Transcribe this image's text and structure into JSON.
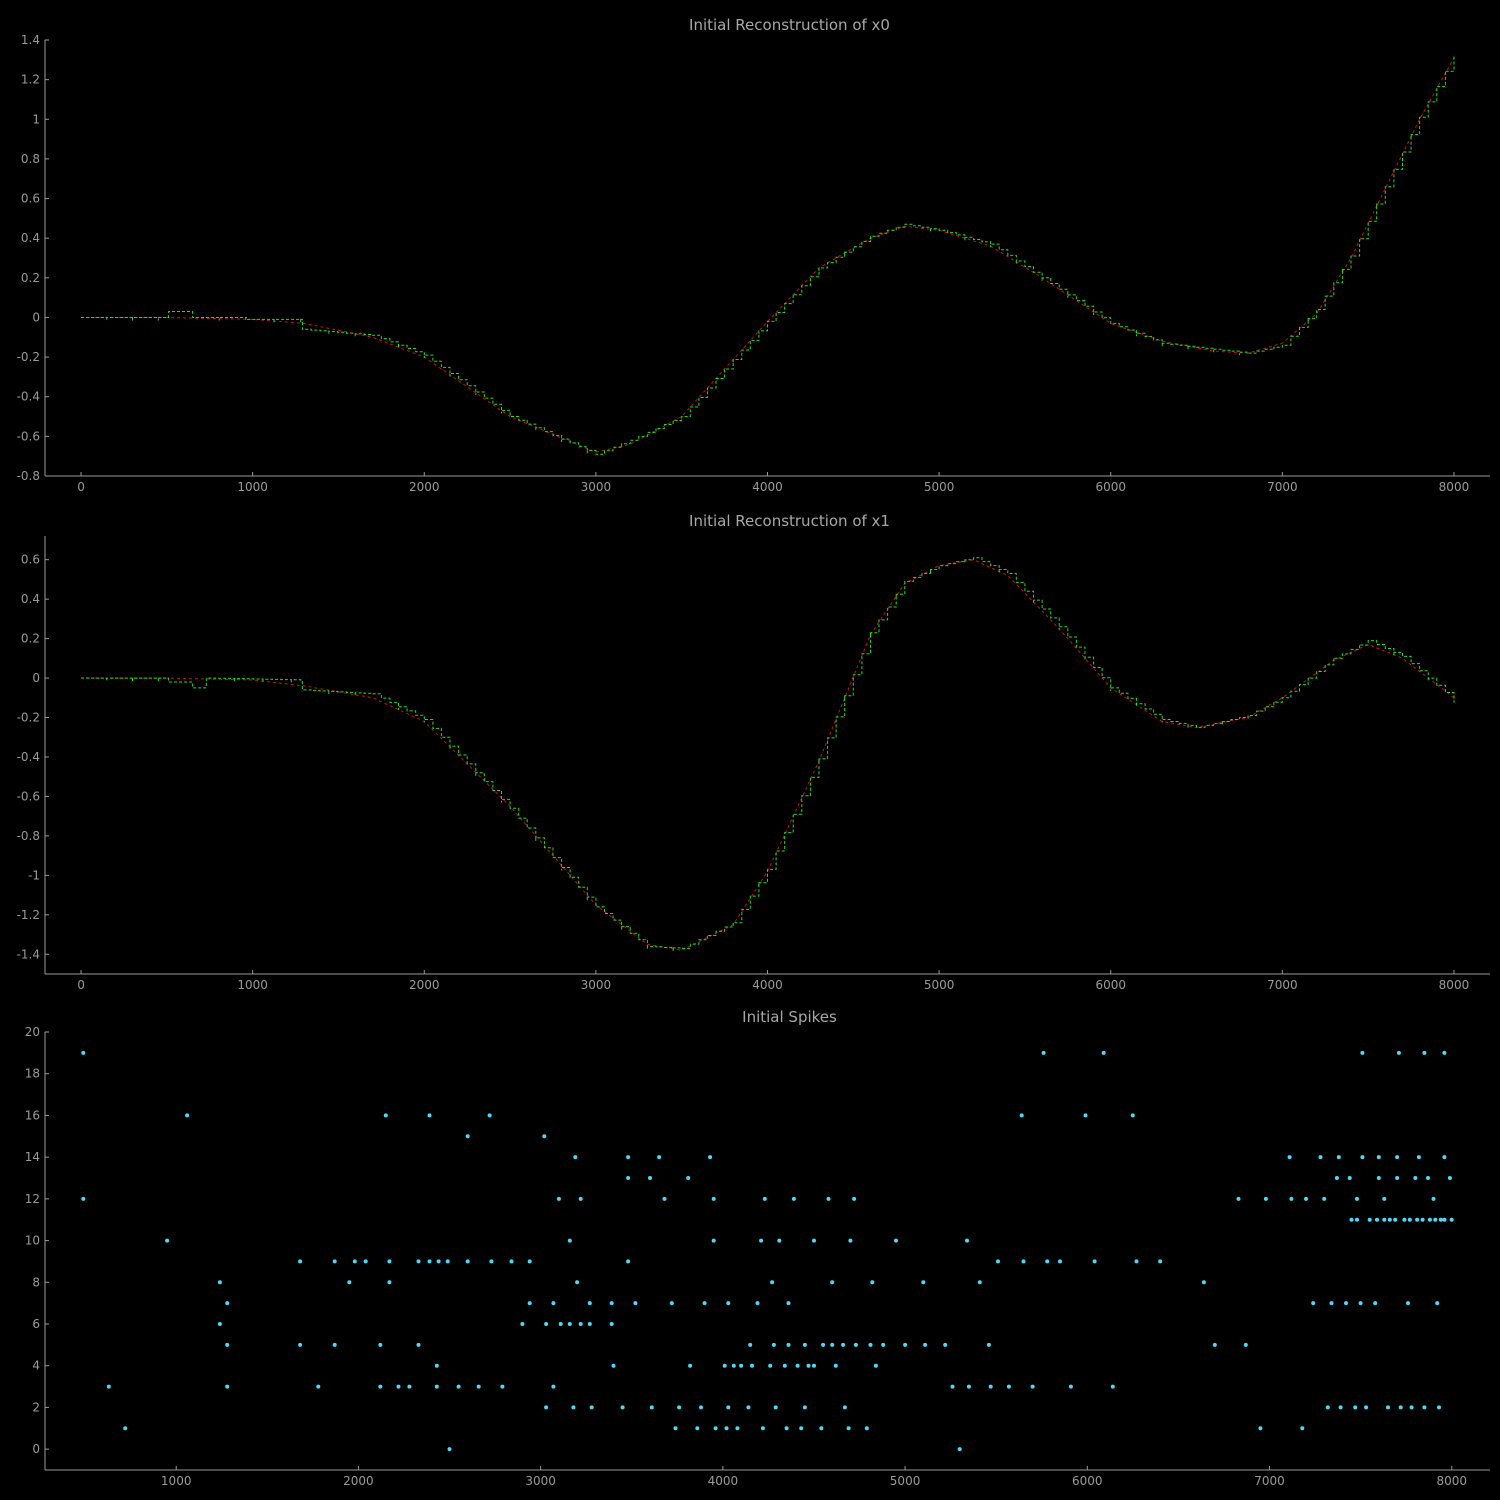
{
  "chart_data": [
    {
      "type": "line",
      "title": "Initial Reconstruction of x0",
      "xlabel": "",
      "ylabel": "",
      "xlim": [
        -210,
        8210
      ],
      "ylim": [
        -0.8,
        1.4
      ],
      "xticks": [
        0,
        1000,
        2000,
        3000,
        4000,
        5000,
        6000,
        7000,
        8000
      ],
      "yticks": [
        -0.8,
        -0.6,
        -0.4,
        -0.2,
        0,
        0.2,
        0.4,
        0.6,
        0.8,
        1,
        1.2,
        1.4
      ],
      "grid": false,
      "colors": {
        "target": "#cc1111",
        "reconstruction": "#22dd22"
      },
      "series": [
        {
          "style": "dashed-red",
          "x": [
            0,
            500,
            1000,
            1300,
            1700,
            2000,
            2500,
            3000,
            3200,
            3500,
            4000,
            4300,
            4600,
            4800,
            5000,
            5300,
            5600,
            6000,
            6300,
            6600,
            6800,
            7000,
            7200,
            7400,
            7600,
            7800,
            8000
          ],
          "y": [
            0,
            0,
            -0.01,
            -0.03,
            -0.1,
            -0.2,
            -0.5,
            -0.68,
            -0.64,
            -0.5,
            -0.02,
            0.25,
            0.4,
            0.46,
            0.44,
            0.36,
            0.2,
            -0.03,
            -0.12,
            -0.17,
            -0.18,
            -0.13,
            0.02,
            0.3,
            0.65,
            1.0,
            1.31
          ]
        },
        {
          "style": "stepped-green",
          "x": [
            0,
            500,
            510,
            640,
            650,
            960,
            970,
            1280,
            1290,
            1700,
            2000,
            2500,
            3000,
            3200,
            3500,
            4000,
            4300,
            4600,
            4800,
            5000,
            5300,
            5600,
            6000,
            6300,
            6600,
            6800,
            7000,
            7200,
            7400,
            7600,
            7800,
            8000
          ],
          "y": [
            0,
            0,
            0.03,
            0.03,
            0.0,
            0.0,
            -0.01,
            -0.01,
            -0.06,
            -0.09,
            -0.19,
            -0.5,
            -0.69,
            -0.62,
            -0.5,
            -0.02,
            0.25,
            0.41,
            0.47,
            0.44,
            0.37,
            0.2,
            -0.03,
            -0.13,
            -0.16,
            -0.18,
            -0.14,
            0.04,
            0.31,
            0.66,
            1.01,
            1.32
          ]
        }
      ]
    },
    {
      "type": "line",
      "title": "Initial Reconstruction of x1",
      "xlabel": "",
      "ylabel": "",
      "xlim": [
        -210,
        8210
      ],
      "ylim": [
        -1.5,
        0.72
      ],
      "xticks": [
        0,
        1000,
        2000,
        3000,
        4000,
        5000,
        6000,
        7000,
        8000
      ],
      "yticks": [
        -1.4,
        -1.2,
        -1,
        -0.8,
        -0.6,
        -0.4,
        -0.2,
        0,
        0.2,
        0.4,
        0.6
      ],
      "grid": false,
      "colors": {
        "target": "#cc1111",
        "reconstruction": "#22dd22"
      },
      "series": [
        {
          "style": "dashed-red",
          "x": [
            0,
            500,
            1000,
            1300,
            1700,
            2000,
            2500,
            3000,
            3300,
            3500,
            3800,
            4000,
            4300,
            4600,
            4800,
            5000,
            5200,
            5400,
            5700,
            6000,
            6300,
            6500,
            6800,
            7000,
            7300,
            7500,
            7700,
            8000
          ],
          "y": [
            0,
            0,
            -0.01,
            -0.04,
            -0.1,
            -0.22,
            -0.65,
            -1.15,
            -1.35,
            -1.38,
            -1.25,
            -0.98,
            -0.42,
            0.22,
            0.48,
            0.57,
            0.6,
            0.52,
            0.25,
            -0.05,
            -0.22,
            -0.25,
            -0.2,
            -0.1,
            0.09,
            0.17,
            0.1,
            -0.1
          ]
        },
        {
          "style": "stepped-green",
          "x": [
            0,
            500,
            510,
            640,
            650,
            720,
            730,
            1280,
            1290,
            1700,
            2000,
            2500,
            3000,
            3300,
            3500,
            3800,
            4000,
            4300,
            4600,
            4800,
            5000,
            5200,
            5400,
            5700,
            6000,
            6300,
            6500,
            6800,
            7000,
            7300,
            7500,
            7700,
            8000
          ],
          "y": [
            0,
            0,
            -0.02,
            -0.02,
            -0.05,
            -0.05,
            0.0,
            -0.01,
            -0.06,
            -0.08,
            -0.21,
            -0.66,
            -1.16,
            -1.36,
            -1.37,
            -1.24,
            -0.97,
            -0.41,
            0.23,
            0.49,
            0.57,
            0.61,
            0.53,
            0.26,
            -0.05,
            -0.21,
            -0.25,
            -0.19,
            -0.1,
            0.1,
            0.19,
            0.11,
            -0.11
          ]
        }
      ]
    },
    {
      "type": "scatter",
      "title": "Initial Spikes",
      "xlabel": "",
      "ylabel": "",
      "xlim": [
        280,
        8210
      ],
      "ylim": [
        -1,
        20
      ],
      "xticks": [
        1000,
        2000,
        3000,
        4000,
        5000,
        6000,
        7000,
        8000
      ],
      "yticks": [
        0,
        2,
        4,
        6,
        8,
        10,
        12,
        14,
        16,
        18,
        20
      ],
      "grid": false,
      "colors": {
        "points": "#4fd8f5"
      },
      "points": [
        [
          490,
          19
        ],
        [
          490,
          12
        ],
        [
          630,
          3
        ],
        [
          720,
          1
        ],
        [
          950,
          10
        ],
        [
          1060,
          16
        ],
        [
          1240,
          8
        ],
        [
          1240,
          6
        ],
        [
          1280,
          7
        ],
        [
          1280,
          5
        ],
        [
          1280,
          3
        ],
        [
          1680,
          9
        ],
        [
          1680,
          5
        ],
        [
          1780,
          3
        ],
        [
          1870,
          9
        ],
        [
          1870,
          5
        ],
        [
          1950,
          8
        ],
        [
          1980,
          9
        ],
        [
          2040,
          9
        ],
        [
          2120,
          5
        ],
        [
          2120,
          3
        ],
        [
          2150,
          16
        ],
        [
          2170,
          9
        ],
        [
          2170,
          8
        ],
        [
          2220,
          3
        ],
        [
          2280,
          3
        ],
        [
          2330,
          9
        ],
        [
          2330,
          5
        ],
        [
          2390,
          16
        ],
        [
          2390,
          9
        ],
        [
          2430,
          4
        ],
        [
          2430,
          3
        ],
        [
          2440,
          9
        ],
        [
          2490,
          9
        ],
        [
          2500,
          0
        ],
        [
          2550,
          3
        ],
        [
          2600,
          15
        ],
        [
          2600,
          9
        ],
        [
          2660,
          3
        ],
        [
          2720,
          16
        ],
        [
          2730,
          9
        ],
        [
          2790,
          3
        ],
        [
          2840,
          9
        ],
        [
          2900,
          6
        ],
        [
          2940,
          9
        ],
        [
          2940,
          7
        ],
        [
          3020,
          15
        ],
        [
          3030,
          6
        ],
        [
          3030,
          2
        ],
        [
          3070,
          7
        ],
        [
          3070,
          3
        ],
        [
          3100,
          12
        ],
        [
          3110,
          6
        ],
        [
          3160,
          10
        ],
        [
          3160,
          6
        ],
        [
          3180,
          2
        ],
        [
          3190,
          14
        ],
        [
          3200,
          8
        ],
        [
          3220,
          12
        ],
        [
          3220,
          6
        ],
        [
          3270,
          7
        ],
        [
          3270,
          6
        ],
        [
          3280,
          2
        ],
        [
          3390,
          7
        ],
        [
          3390,
          6
        ],
        [
          3400,
          4
        ],
        [
          3450,
          2
        ],
        [
          3480,
          14
        ],
        [
          3480,
          13
        ],
        [
          3480,
          9
        ],
        [
          3520,
          7
        ],
        [
          3600,
          13
        ],
        [
          3610,
          2
        ],
        [
          3650,
          14
        ],
        [
          3680,
          12
        ],
        [
          3720,
          7
        ],
        [
          3740,
          1
        ],
        [
          3760,
          2
        ],
        [
          3810,
          13
        ],
        [
          3820,
          4
        ],
        [
          3860,
          1
        ],
        [
          3880,
          2
        ],
        [
          3900,
          7
        ],
        [
          3930,
          14
        ],
        [
          3950,
          12
        ],
        [
          3950,
          10
        ],
        [
          3960,
          1
        ],
        [
          4010,
          4
        ],
        [
          4020,
          1
        ],
        [
          4030,
          7
        ],
        [
          4030,
          2
        ],
        [
          4060,
          4
        ],
        [
          4080,
          1
        ],
        [
          4100,
          4
        ],
        [
          4140,
          2
        ],
        [
          4150,
          5
        ],
        [
          4160,
          4
        ],
        [
          4190,
          7
        ],
        [
          4210,
          10
        ],
        [
          4220,
          1
        ],
        [
          4230,
          12
        ],
        [
          4260,
          4
        ],
        [
          4270,
          8
        ],
        [
          4280,
          5
        ],
        [
          4290,
          2
        ],
        [
          4310,
          10
        ],
        [
          4340,
          4
        ],
        [
          4350,
          1
        ],
        [
          4360,
          7
        ],
        [
          4360,
          5
        ],
        [
          4390,
          12
        ],
        [
          4410,
          4
        ],
        [
          4430,
          1
        ],
        [
          4450,
          5
        ],
        [
          4450,
          2
        ],
        [
          4470,
          4
        ],
        [
          4500,
          10
        ],
        [
          4500,
          4
        ],
        [
          4540,
          1
        ],
        [
          4550,
          5
        ],
        [
          4580,
          12
        ],
        [
          4600,
          8
        ],
        [
          4600,
          5
        ],
        [
          4620,
          4
        ],
        [
          4660,
          5
        ],
        [
          4670,
          2
        ],
        [
          4690,
          1
        ],
        [
          4700,
          10
        ],
        [
          4720,
          12
        ],
        [
          4730,
          5
        ],
        [
          4790,
          1
        ],
        [
          4810,
          5
        ],
        [
          4820,
          8
        ],
        [
          4840,
          4
        ],
        [
          4880,
          5
        ],
        [
          4950,
          10
        ],
        [
          5000,
          5
        ],
        [
          5100,
          8
        ],
        [
          5110,
          5
        ],
        [
          5220,
          5
        ],
        [
          5260,
          3
        ],
        [
          5300,
          0
        ],
        [
          5340,
          10
        ],
        [
          5350,
          3
        ],
        [
          5410,
          8
        ],
        [
          5460,
          5
        ],
        [
          5470,
          3
        ],
        [
          5510,
          9
        ],
        [
          5570,
          3
        ],
        [
          5640,
          16
        ],
        [
          5650,
          9
        ],
        [
          5700,
          3
        ],
        [
          5760,
          19
        ],
        [
          5780,
          9
        ],
        [
          5850,
          9
        ],
        [
          5910,
          3
        ],
        [
          5990,
          16
        ],
        [
          6040,
          9
        ],
        [
          6090,
          19
        ],
        [
          6140,
          3
        ],
        [
          6250,
          16
        ],
        [
          6270,
          9
        ],
        [
          6400,
          9
        ],
        [
          6640,
          8
        ],
        [
          6700,
          5
        ],
        [
          6830,
          12
        ],
        [
          6870,
          5
        ],
        [
          6950,
          1
        ],
        [
          6980,
          12
        ],
        [
          7110,
          14
        ],
        [
          7120,
          12
        ],
        [
          7180,
          1
        ],
        [
          7200,
          12
        ],
        [
          7240,
          7
        ],
        [
          7280,
          14
        ],
        [
          7300,
          12
        ],
        [
          7320,
          2
        ],
        [
          7340,
          7
        ],
        [
          7370,
          13
        ],
        [
          7380,
          14
        ],
        [
          7390,
          2
        ],
        [
          7420,
          7
        ],
        [
          7440,
          13
        ],
        [
          7450,
          11
        ],
        [
          7470,
          2
        ],
        [
          7480,
          12
        ],
        [
          7480,
          11
        ],
        [
          7500,
          7
        ],
        [
          7510,
          19
        ],
        [
          7510,
          14
        ],
        [
          7530,
          2
        ],
        [
          7550,
          11
        ],
        [
          7580,
          7
        ],
        [
          7590,
          11
        ],
        [
          7600,
          13
        ],
        [
          7600,
          14
        ],
        [
          7630,
          11
        ],
        [
          7630,
          12
        ],
        [
          7650,
          2
        ],
        [
          7660,
          11
        ],
        [
          7690,
          11
        ],
        [
          7700,
          13
        ],
        [
          7700,
          14
        ],
        [
          7710,
          19
        ],
        [
          7720,
          2
        ],
        [
          7740,
          11
        ],
        [
          7760,
          7
        ],
        [
          7770,
          11
        ],
        [
          7780,
          2
        ],
        [
          7800,
          13
        ],
        [
          7810,
          11
        ],
        [
          7820,
          14
        ],
        [
          7840,
          11
        ],
        [
          7850,
          19
        ],
        [
          7850,
          2
        ],
        [
          7870,
          13
        ],
        [
          7880,
          11
        ],
        [
          7900,
          12
        ],
        [
          7910,
          11
        ],
        [
          7920,
          7
        ],
        [
          7930,
          2
        ],
        [
          7940,
          11
        ],
        [
          7960,
          11
        ],
        [
          7960,
          19
        ],
        [
          7960,
          14
        ],
        [
          7990,
          13
        ],
        [
          8000,
          11
        ]
      ]
    }
  ]
}
